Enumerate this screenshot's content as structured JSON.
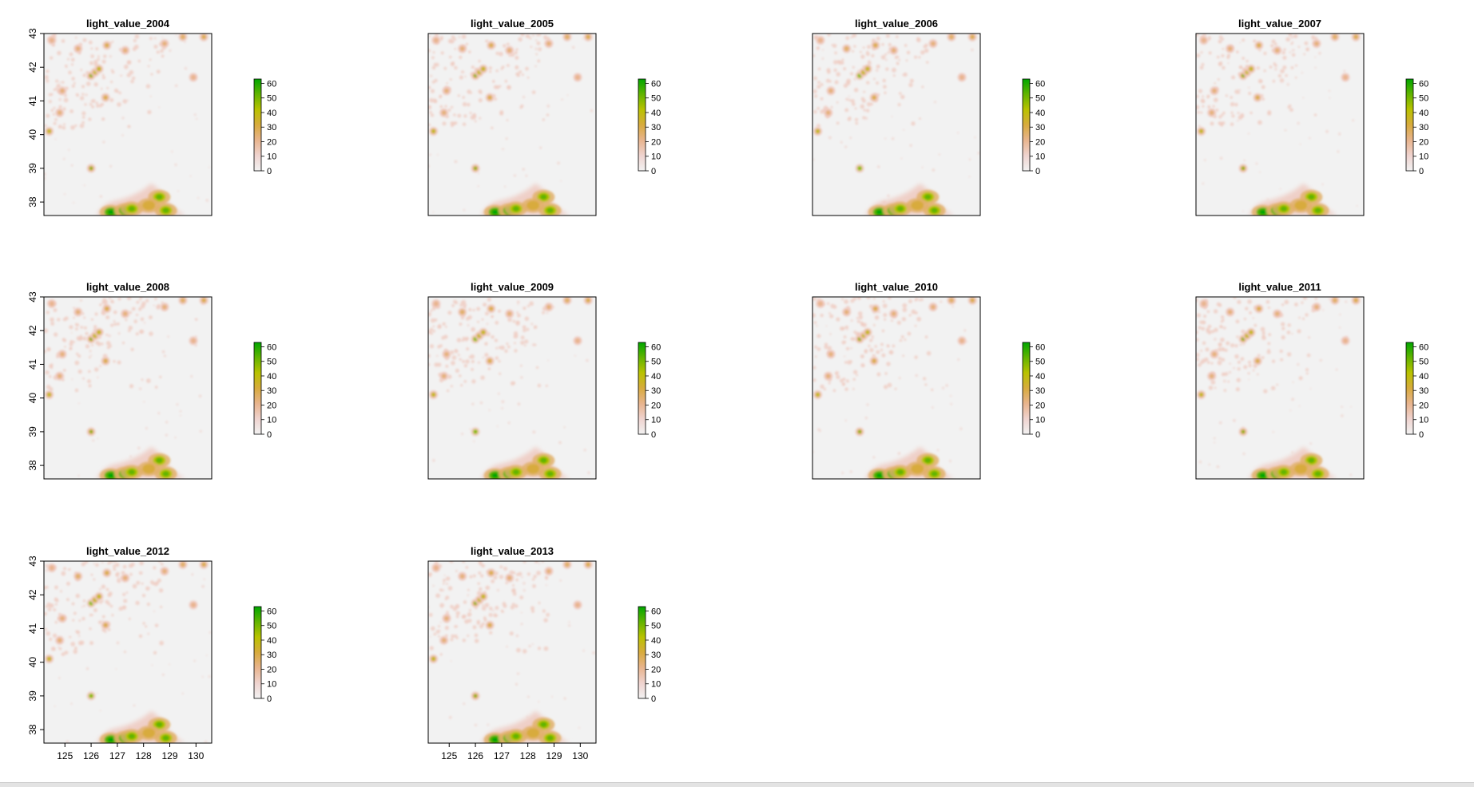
{
  "chart_data": {
    "type": "heatmap",
    "layout": {
      "rows": 3,
      "cols": 4
    },
    "x_ticks": [
      125,
      126,
      127,
      128,
      129,
      130
    ],
    "y_ticks": [
      38,
      39,
      40,
      41,
      42,
      43
    ],
    "xlim": [
      124.2,
      130.6
    ],
    "ylim": [
      37.6,
      43.0
    ],
    "legend": {
      "ticks": [
        0,
        10,
        20,
        30,
        40,
        50,
        60
      ],
      "range": [
        0,
        63
      ],
      "colors": [
        "#f2f2f2",
        "#efd3cf",
        "#e8b48e",
        "#d8ab3e",
        "#b9c200",
        "#62b400",
        "#00a600"
      ]
    },
    "colors": {
      "background": "#f2f2f2",
      "low": "#efc9bf",
      "mid": "#e2b06a",
      "high": "#00a600"
    },
    "panels": [
      {
        "title": "light_value_2004",
        "show_x_axis": false,
        "show_y_axis": true
      },
      {
        "title": "light_value_2005",
        "show_x_axis": false,
        "show_y_axis": false
      },
      {
        "title": "light_value_2006",
        "show_x_axis": false,
        "show_y_axis": false
      },
      {
        "title": "light_value_2007",
        "show_x_axis": false,
        "show_y_axis": false
      },
      {
        "title": "light_value_2008",
        "show_x_axis": false,
        "show_y_axis": true
      },
      {
        "title": "light_value_2009",
        "show_x_axis": false,
        "show_y_axis": false
      },
      {
        "title": "light_value_2010",
        "show_x_axis": false,
        "show_y_axis": false
      },
      {
        "title": "light_value_2011",
        "show_x_axis": false,
        "show_y_axis": false
      },
      {
        "title": "light_value_2012",
        "show_x_axis": true,
        "show_y_axis": true
      },
      {
        "title": "light_value_2013",
        "show_x_axis": true,
        "show_y_axis": false
      }
    ],
    "features": {
      "cities": [
        {
          "x": 126.0,
          "y": 41.75,
          "v": 45
        },
        {
          "x": 126.15,
          "y": 41.85,
          "v": 35
        },
        {
          "x": 126.3,
          "y": 41.95,
          "v": 40
        },
        {
          "x": 126.55,
          "y": 41.1,
          "v": 25
        },
        {
          "x": 125.5,
          "y": 42.55,
          "v": 20
        },
        {
          "x": 126.6,
          "y": 42.65,
          "v": 30
        },
        {
          "x": 127.3,
          "y": 42.5,
          "v": 18
        },
        {
          "x": 129.5,
          "y": 42.9,
          "v": 22
        },
        {
          "x": 130.3,
          "y": 42.9,
          "v": 25
        },
        {
          "x": 124.4,
          "y": 40.1,
          "v": 40
        },
        {
          "x": 124.8,
          "y": 40.65,
          "v": 15
        },
        {
          "x": 126.0,
          "y": 39.0,
          "v": 45
        },
        {
          "x": 124.9,
          "y": 41.3,
          "v": 15
        },
        {
          "x": 128.8,
          "y": 42.7,
          "v": 15
        },
        {
          "x": 124.5,
          "y": 42.8,
          "v": 12
        },
        {
          "x": 129.9,
          "y": 41.7,
          "v": 12
        }
      ],
      "metro": [
        {
          "x": 127.0,
          "y": 37.65,
          "v": 63
        },
        {
          "x": 126.75,
          "y": 37.7,
          "v": 60
        },
        {
          "x": 127.3,
          "y": 37.75,
          "v": 55
        },
        {
          "x": 127.55,
          "y": 37.8,
          "v": 50
        },
        {
          "x": 128.6,
          "y": 38.15,
          "v": 48
        },
        {
          "x": 128.85,
          "y": 37.75,
          "v": 45
        },
        {
          "x": 128.2,
          "y": 37.9,
          "v": 30
        }
      ]
    }
  }
}
